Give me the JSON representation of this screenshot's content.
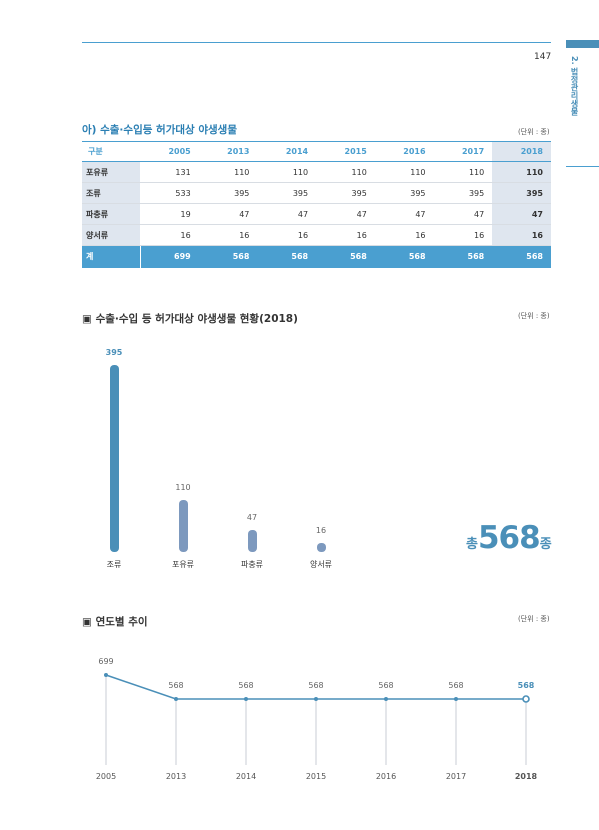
{
  "header": {
    "page_number": "147",
    "side_label": "2. 법정관리생물"
  },
  "section1": {
    "title": "아) 수출·수입등 허가대상 야생생물",
    "unit": "(단위 : 종)",
    "columns": [
      "구분",
      "2005",
      "2013",
      "2014",
      "2015",
      "2016",
      "2017",
      "2018"
    ],
    "rows": [
      [
        "포유류",
        "131",
        "110",
        "110",
        "110",
        "110",
        "110",
        "110"
      ],
      [
        "조류",
        "533",
        "395",
        "395",
        "395",
        "395",
        "395",
        "395"
      ],
      [
        "파충류",
        "19",
        "47",
        "47",
        "47",
        "47",
        "47",
        "47"
      ],
      [
        "양서류",
        "16",
        "16",
        "16",
        "16",
        "16",
        "16",
        "16"
      ]
    ],
    "total": [
      "계",
      "699",
      "568",
      "568",
      "568",
      "568",
      "568",
      "568"
    ]
  },
  "section2": {
    "title": "▣ 수출·수입 등 허가대상 야생생물 현황(2018)",
    "unit": "(단위 : 종)",
    "total_prefix": "총",
    "total_value": "568",
    "total_suffix": "종"
  },
  "section3": {
    "title": "▣ 연도별 추이",
    "unit": "(단위 : 종)"
  },
  "chart_data": [
    {
      "type": "bar",
      "categories": [
        "조류",
        "포유류",
        "파충류",
        "양서류"
      ],
      "values": [
        395,
        110,
        47,
        16
      ],
      "colors": [
        "#4a8fb8",
        "#7d99be",
        "#7d99be",
        "#7d99be"
      ]
    },
    {
      "type": "line",
      "x": [
        "2005",
        "2013",
        "2014",
        "2015",
        "2016",
        "2017",
        "2018"
      ],
      "values": [
        699,
        568,
        568,
        568,
        568,
        568,
        568
      ],
      "color": "#4a8fb8"
    }
  ]
}
